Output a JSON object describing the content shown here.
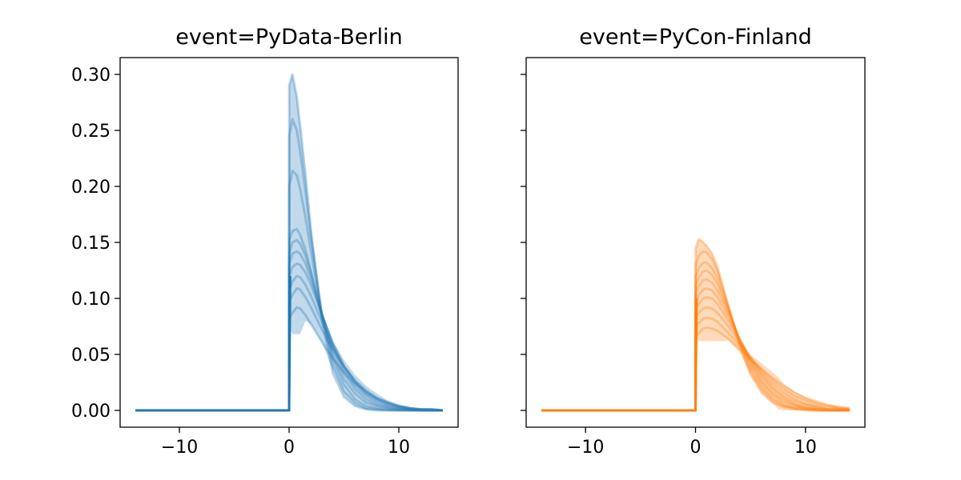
{
  "chart_data": [
    {
      "type": "line",
      "title": "event=PyData-Berlin",
      "xlabel": "",
      "ylabel": "",
      "xlim": [
        -15.4,
        15.4
      ],
      "ylim": [
        -0.015,
        0.315
      ],
      "x_ticks": [
        -10,
        0,
        10
      ],
      "x_tick_labels": [
        "−10",
        "0",
        "10"
      ],
      "y_ticks": [
        0.0,
        0.05,
        0.1,
        0.15,
        0.2,
        0.25,
        0.3
      ],
      "y_tick_labels": [
        "0.00",
        "0.05",
        "0.10",
        "0.15",
        "0.20",
        "0.25",
        "0.30"
      ],
      "grid": false,
      "color": "#1f77b4",
      "x": [
        -14,
        -10,
        -5,
        0,
        0.01,
        0.3,
        0.7,
        1,
        1.5,
        2,
        3,
        4,
        5,
        6,
        7,
        8,
        9,
        10,
        11,
        12,
        13,
        14
      ],
      "series": [
        {
          "values": [
            0,
            0,
            0,
            0,
            0.082,
            0.087,
            0.092,
            0.091,
            0.085,
            0.077,
            0.061,
            0.046,
            0.034,
            0.024,
            0.017,
            0.011,
            0.007,
            0.004,
            0.002,
            0.001,
            0.001,
            0
          ]
        },
        {
          "values": [
            0,
            0,
            0,
            0,
            0.097,
            0.103,
            0.109,
            0.108,
            0.101,
            0.092,
            0.072,
            0.054,
            0.039,
            0.027,
            0.018,
            0.011,
            0.007,
            0.004,
            0.002,
            0.001,
            0.001,
            0
          ]
        },
        {
          "values": [
            0,
            0,
            0,
            0,
            0.107,
            0.115,
            0.12,
            0.119,
            0.112,
            0.102,
            0.079,
            0.057,
            0.039,
            0.026,
            0.016,
            0.01,
            0.006,
            0.003,
            0.002,
            0.001,
            0.001,
            0
          ]
        },
        {
          "values": [
            0,
            0,
            0,
            0,
            0.12,
            0.128,
            0.131,
            0.13,
            0.123,
            0.112,
            0.085,
            0.06,
            0.04,
            0.025,
            0.015,
            0.009,
            0.005,
            0.003,
            0.001,
            0.001,
            0,
            0
          ]
        },
        {
          "values": [
            0,
            0,
            0,
            0,
            0.13,
            0.14,
            0.142,
            0.14,
            0.131,
            0.117,
            0.086,
            0.058,
            0.037,
            0.022,
            0.013,
            0.007,
            0.004,
            0.002,
            0.001,
            0,
            0,
            0
          ]
        },
        {
          "values": [
            0,
            0,
            0,
            0,
            0.14,
            0.15,
            0.152,
            0.149,
            0.138,
            0.122,
            0.086,
            0.055,
            0.033,
            0.019,
            0.01,
            0.005,
            0.003,
            0.001,
            0.001,
            0,
            0,
            0
          ]
        },
        {
          "values": [
            0,
            0,
            0,
            0,
            0.152,
            0.16,
            0.162,
            0.157,
            0.143,
            0.124,
            0.083,
            0.05,
            0.028,
            0.015,
            0.007,
            0.004,
            0.002,
            0.001,
            0,
            0,
            0,
            0
          ]
        },
        {
          "values": [
            0,
            0,
            0,
            0,
            0.2,
            0.214,
            0.21,
            0.198,
            0.172,
            0.142,
            0.085,
            0.046,
            0.023,
            0.01,
            0.004,
            0.002,
            0.001,
            0,
            0,
            0,
            0,
            0
          ]
        },
        {
          "values": [
            0,
            0,
            0,
            0,
            0.245,
            0.26,
            0.25,
            0.232,
            0.195,
            0.155,
            0.085,
            0.04,
            0.017,
            0.007,
            0.002,
            0.001,
            0,
            0,
            0,
            0,
            0,
            0
          ]
        },
        {
          "values": [
            0,
            0,
            0,
            0,
            0.29,
            0.3,
            0.28,
            0.255,
            0.21,
            0.16,
            0.08,
            0.033,
            0.012,
            0.004,
            0.001,
            0,
            0,
            0,
            0,
            0,
            0,
            0
          ]
        }
      ],
      "band": {
        "x": [
          0,
          0.01,
          0.3,
          0.7,
          1,
          1.5,
          2,
          3,
          4,
          5,
          6,
          7,
          8,
          9,
          10,
          11,
          12,
          13,
          14
        ],
        "lower": [
          0,
          0.075,
          0.068,
          0.068,
          0.068,
          0.08,
          0.077,
          0.061,
          0.035,
          0.013,
          0.004,
          0.001,
          0,
          0,
          0,
          0,
          0,
          0,
          0
        ],
        "upper": [
          0,
          0.29,
          0.3,
          0.28,
          0.255,
          0.21,
          0.16,
          0.087,
          0.062,
          0.045,
          0.032,
          0.022,
          0.015,
          0.009,
          0.005,
          0.003,
          0.001,
          0.001,
          0
        ]
      },
      "mean": {
        "x": [
          -14,
          0,
          0.1
        ],
        "values": [
          0,
          0,
          0.12
        ]
      }
    },
    {
      "type": "line",
      "title": "event=PyCon-Finland",
      "xlabel": "",
      "ylabel": "",
      "xlim": [
        -15.4,
        15.4
      ],
      "ylim": [
        -0.015,
        0.315
      ],
      "x_ticks": [
        -10,
        0,
        10
      ],
      "x_tick_labels": [
        "−10",
        "0",
        "10"
      ],
      "y_ticks": [
        0.0,
        0.05,
        0.1,
        0.15,
        0.2,
        0.25,
        0.3
      ],
      "y_tick_labels": [
        "",
        "",
        "",
        "",
        "",
        "",
        ""
      ],
      "grid": false,
      "color": "#ff7f0e",
      "x": [
        -14,
        -10,
        -5,
        0,
        0.01,
        0.3,
        0.7,
        1,
        1.5,
        2,
        3,
        4,
        5,
        6,
        7,
        8,
        9,
        10,
        11,
        12,
        13,
        14
      ],
      "series": [
        {
          "values": [
            0,
            0,
            0,
            0,
            0.066,
            0.069,
            0.073,
            0.074,
            0.073,
            0.071,
            0.064,
            0.055,
            0.046,
            0.037,
            0.029,
            0.022,
            0.016,
            0.011,
            0.008,
            0.005,
            0.003,
            0.002
          ]
        },
        {
          "values": [
            0,
            0,
            0,
            0,
            0.075,
            0.078,
            0.082,
            0.083,
            0.082,
            0.079,
            0.069,
            0.058,
            0.047,
            0.036,
            0.027,
            0.019,
            0.013,
            0.009,
            0.006,
            0.004,
            0.002,
            0.001
          ]
        },
        {
          "values": [
            0,
            0,
            0,
            0,
            0.083,
            0.087,
            0.091,
            0.092,
            0.091,
            0.087,
            0.075,
            0.061,
            0.047,
            0.034,
            0.024,
            0.016,
            0.01,
            0.006,
            0.004,
            0.002,
            0.001,
            0.001
          ]
        },
        {
          "values": [
            0,
            0,
            0,
            0,
            0.09,
            0.095,
            0.1,
            0.101,
            0.1,
            0.095,
            0.08,
            0.063,
            0.046,
            0.032,
            0.021,
            0.013,
            0.008,
            0.005,
            0.003,
            0.001,
            0.001,
            0
          ]
        },
        {
          "values": [
            0,
            0,
            0,
            0,
            0.097,
            0.103,
            0.108,
            0.109,
            0.107,
            0.101,
            0.084,
            0.064,
            0.045,
            0.03,
            0.019,
            0.011,
            0.006,
            0.003,
            0.002,
            0.001,
            0,
            0
          ]
        },
        {
          "values": [
            0,
            0,
            0,
            0,
            0.105,
            0.111,
            0.116,
            0.117,
            0.114,
            0.107,
            0.087,
            0.064,
            0.043,
            0.027,
            0.016,
            0.009,
            0.005,
            0.002,
            0.001,
            0,
            0,
            0
          ]
        },
        {
          "values": [
            0,
            0,
            0,
            0,
            0.112,
            0.119,
            0.124,
            0.125,
            0.121,
            0.113,
            0.089,
            0.063,
            0.041,
            0.025,
            0.014,
            0.007,
            0.004,
            0.002,
            0.001,
            0,
            0,
            0
          ]
        },
        {
          "values": [
            0,
            0,
            0,
            0,
            0.12,
            0.127,
            0.132,
            0.132,
            0.127,
            0.118,
            0.091,
            0.062,
            0.038,
            0.022,
            0.011,
            0.005,
            0.002,
            0.001,
            0,
            0,
            0,
            0
          ]
        },
        {
          "values": [
            0,
            0,
            0,
            0,
            0.13,
            0.138,
            0.142,
            0.141,
            0.135,
            0.124,
            0.092,
            0.06,
            0.035,
            0.019,
            0.009,
            0.004,
            0.002,
            0.001,
            0,
            0,
            0,
            0
          ]
        },
        {
          "values": [
            0,
            0,
            0,
            0,
            0.145,
            0.153,
            0.15,
            0.147,
            0.14,
            0.128,
            0.093,
            0.058,
            0.032,
            0.016,
            0.007,
            0.003,
            0.001,
            0,
            0,
            0,
            0,
            0
          ]
        }
      ],
      "band": {
        "x": [
          0,
          0.01,
          0.3,
          0.7,
          1,
          1.5,
          2,
          3,
          4,
          5,
          6,
          7,
          7.5,
          8,
          9,
          10,
          11,
          12,
          13,
          14
        ],
        "lower": [
          0,
          0.062,
          0.062,
          0.062,
          0.062,
          0.062,
          0.062,
          0.062,
          0.052,
          0.032,
          0.016,
          0.007,
          0.001,
          0,
          0,
          0,
          0,
          0,
          0,
          0
        ],
        "upper": [
          0,
          0.145,
          0.153,
          0.15,
          0.147,
          0.14,
          0.128,
          0.093,
          0.064,
          0.05,
          0.042,
          0.034,
          0.03,
          0.024,
          0.017,
          0.012,
          0.008,
          0.005,
          0.004,
          0.003
        ]
      },
      "mean": {
        "x": [
          -14,
          0,
          0.1
        ],
        "values": [
          0,
          0,
          0.1
        ]
      }
    }
  ]
}
